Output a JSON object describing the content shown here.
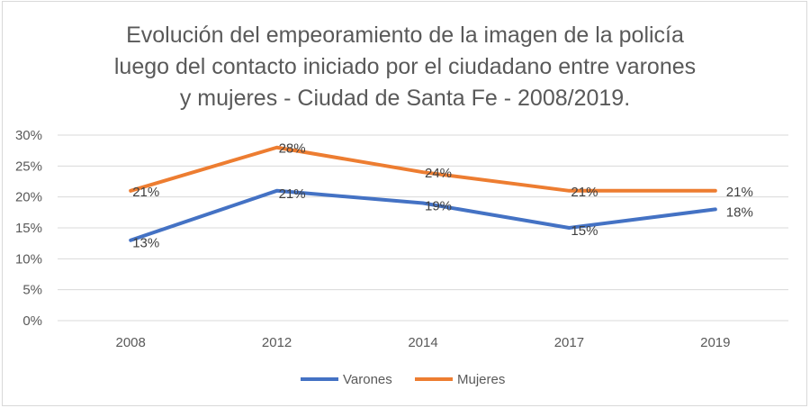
{
  "chart_data": {
    "type": "line",
    "title_lines": [
      "Evolución del empeoramiento de la imagen de la policía",
      "luego del contacto iniciado por el ciudadano entre varones",
      "y mujeres - Ciudad de Santa Fe - 2008/2019."
    ],
    "categories": [
      "2008",
      "2012",
      "2014",
      "2017",
      "2019"
    ],
    "series": [
      {
        "name": "Varones",
        "values": [
          13,
          21,
          19,
          15,
          18
        ],
        "labels": [
          "13%",
          "21%",
          "19%",
          "15%",
          "18%"
        ],
        "color": "#4472c4"
      },
      {
        "name": "Mujeres",
        "values": [
          21,
          28,
          24,
          21,
          21
        ],
        "labels": [
          "21%",
          "28%",
          "24%",
          "21%",
          "21%"
        ],
        "color": "#ed7d31"
      }
    ],
    "y_ticks": [
      "0%",
      "5%",
      "10%",
      "15%",
      "20%",
      "25%",
      "30%"
    ],
    "ylim": [
      0,
      30
    ],
    "grid": true,
    "legend_position": "bottom"
  }
}
